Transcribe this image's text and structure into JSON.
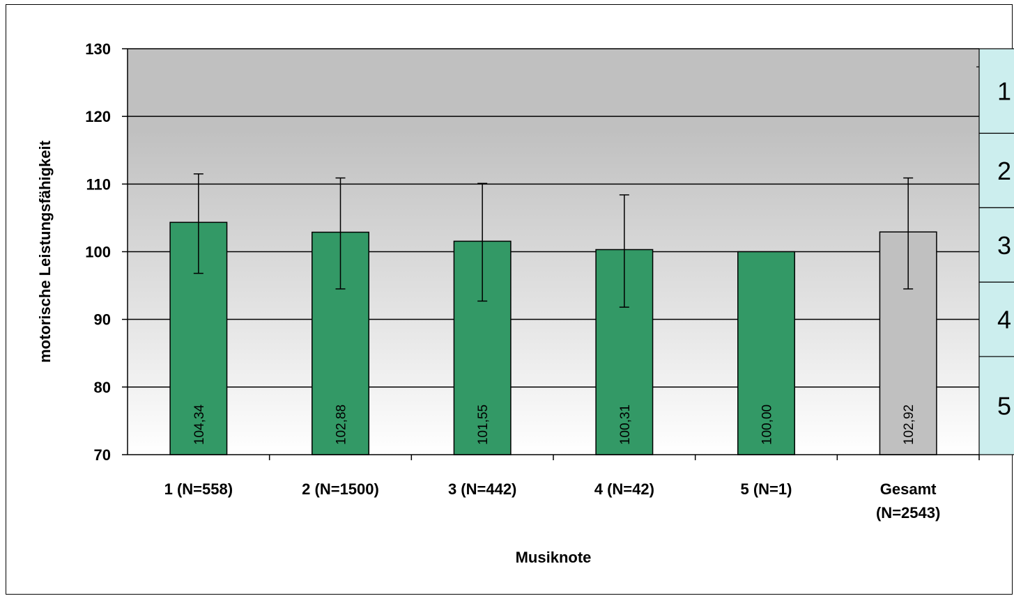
{
  "chart_data": {
    "type": "bar",
    "title": "",
    "xlabel": "Musiknote",
    "ylabel": "motorische Leistungsfähigkeit",
    "ylim": [
      70,
      130
    ],
    "yticks": [
      "70",
      "80",
      "90",
      "100",
      "110",
      "120",
      "130"
    ],
    "grid": true,
    "categories": [
      [
        "1 (N=558)"
      ],
      [
        "2 (N=1500)"
      ],
      [
        "3 (N=442)"
      ],
      [
        "4 (N=42)"
      ],
      [
        "5 (N=1)"
      ],
      [
        "Gesamt",
        "(N=2543)"
      ]
    ],
    "values": [
      104.34,
      102.88,
      101.55,
      100.31,
      100.0,
      102.92
    ],
    "value_labels": [
      "104,34",
      "102,88",
      "101,55",
      "100,31",
      "100,00",
      "102,92"
    ],
    "error_high": [
      111.5,
      110.9,
      110.1,
      108.4,
      100.0,
      110.9
    ],
    "error_low": [
      96.8,
      94.5,
      92.7,
      91.8,
      100.0,
      94.5
    ],
    "bar_colors": [
      "#339966",
      "#339966",
      "#339966",
      "#339966",
      "#339966",
      "#c0c0c0"
    ],
    "grade_scale": {
      "labels": [
        "1",
        "2",
        "3",
        "4",
        "5"
      ],
      "bounds": [
        [
          117.5,
          130
        ],
        [
          106.5,
          117.5
        ],
        [
          95.5,
          106.5
        ],
        [
          84.5,
          95.5
        ],
        [
          70,
          84.5
        ]
      ]
    }
  }
}
